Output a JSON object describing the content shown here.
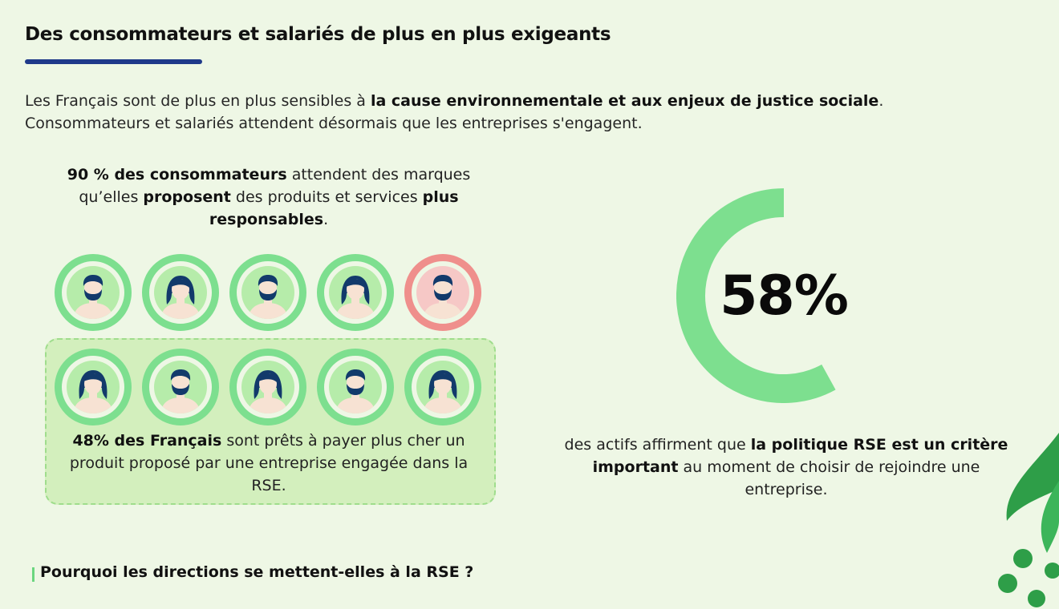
{
  "header": {
    "title": "Des consommateurs et salariés de plus en plus exigeants"
  },
  "intro": {
    "line1_start": "Les Français sont de plus en plus sensibles à ",
    "line1_bold": "la cause environnementale et aux enjeux de justice sociale",
    "line1_end": ".",
    "line2": "Consommateurs et salariés attendent désormais que les entreprises s'engagent."
  },
  "stat_consumers": {
    "bold1": "90 % des consommateurs",
    "text1": " attendent des marques qu’elles ",
    "bold2": "proposent",
    "text2": " des produits et services ",
    "bold3": "plus responsables",
    "text3": "."
  },
  "people": {
    "row1": [
      {
        "gender": "man",
        "color": "green"
      },
      {
        "gender": "woman",
        "color": "green"
      },
      {
        "gender": "man",
        "color": "green"
      },
      {
        "gender": "woman",
        "color": "green"
      },
      {
        "gender": "man",
        "color": "red"
      }
    ],
    "row2": [
      {
        "gender": "woman",
        "color": "green"
      },
      {
        "gender": "man",
        "color": "green"
      },
      {
        "gender": "woman",
        "color": "green"
      },
      {
        "gender": "man",
        "color": "green"
      },
      {
        "gender": "woman",
        "color": "green"
      }
    ],
    "colors": {
      "green_ring": "#7ddf8f",
      "red_ring": "#ef8f8c"
    }
  },
  "stat_french": {
    "bold": "48% des Français",
    "text": " sont prêts à payer plus cher un produit proposé par une entreprise engagée dans la RSE."
  },
  "gauge": {
    "value_label": "58%",
    "fraction": 0.58,
    "color": "#7ddf8f"
  },
  "stat_employees": {
    "text1": "des actifs affirment que ",
    "bold1": "la politique RSE est un critère important",
    "text2": " au moment de choisir de rejoindre une entreprise."
  },
  "footer": {
    "question": "Pourquoi les directions se mettent-elles à la RSE ?"
  }
}
